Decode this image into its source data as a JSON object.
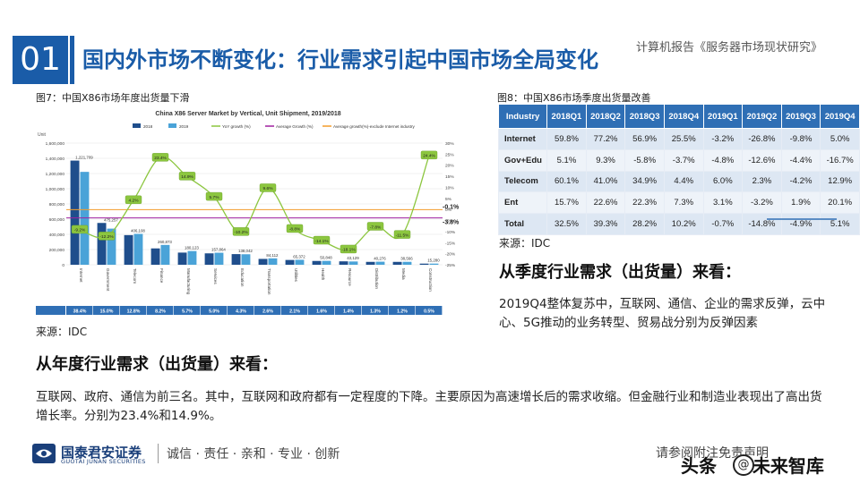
{
  "header": {
    "number": "01",
    "title": "国内外市场不断变化：行业需求引起中国市场全局变化",
    "report_name": "计算机报告《服务器市场现状研究》"
  },
  "left": {
    "fig_caption": "图7：中国X86市场年度出货量下滑",
    "source": "来源：IDC",
    "heading": "从年度行业需求（出货量）来看：",
    "paragraph": "互联网、政府、通信为前三名。其中，互联网和政府都有一定程度的下降。主要原因为高速增长后的需求收缩。但金融行业和制造业表现出了高出货增长率。分别为23.4%和14.9%。"
  },
  "right": {
    "fig_caption": "图8：中国X86市场季度出货量改善",
    "source": "来源：IDC",
    "heading": "从季度行业需求（出货量）来看：",
    "paragraph": "2019Q4整体复苏中，互联网、通信、企业的需求反弹，云中心、5G推动的业务转型、贸易战分别为反弹因素"
  },
  "quarter_table": {
    "headers": [
      "Industry",
      "2018Q1",
      "2018Q2",
      "2018Q3",
      "2018Q4",
      "2019Q1",
      "2019Q2",
      "2019Q3",
      "2019Q4"
    ],
    "rows": [
      [
        "Internet",
        "59.8%",
        "77.2%",
        "56.9%",
        "25.5%",
        "-3.2%",
        "-26.8%",
        "-9.8%",
        "5.0%"
      ],
      [
        "Gov+Edu",
        "5.1%",
        "9.3%",
        "-5.8%",
        "-3.7%",
        "-4.8%",
        "-12.6%",
        "-4.4%",
        "-16.7%"
      ],
      [
        "Telecom",
        "60.1%",
        "41.0%",
        "34.9%",
        "4.4%",
        "6.0%",
        "2.3%",
        "-4.2%",
        "12.9%"
      ],
      [
        "Ent",
        "15.7%",
        "22.6%",
        "22.3%",
        "7.3%",
        "3.1%",
        "-3.2%",
        "1.9%",
        "20.1%"
      ],
      [
        "Total",
        "32.5%",
        "39.3%",
        "28.2%",
        "10.2%",
        "-0.7%",
        "-14.8%",
        "-4.9%",
        "5.1%"
      ]
    ]
  },
  "footer": {
    "logo_text": "国泰君安证券",
    "logo_sub": "GUOTAI JUNAN SECURITIES",
    "slogan": "诚信 · 责任 · 亲和 · 专业 · 创新",
    "disclaimer": "请参阅附注免责声明",
    "watermark": "头条",
    "watermark_name": "未来智库",
    "watermark_icon": "@"
  },
  "colors": {
    "brand_blue": "#1a5ca8",
    "bar_2018": "#1f4e8c",
    "bar_2019": "#4aa3d8",
    "yoy_green": "#8cc63f",
    "avg_purple": "#a020a0",
    "avg_orange": "#f39c2a"
  },
  "chart_data": {
    "type": "bar",
    "title": "China X86 Server Market by Vertical, Unit Shipment, 2019/2018",
    "ylabel": "Unit",
    "ylim": [
      0,
      1600000
    ],
    "y2lim": [
      -25,
      30
    ],
    "y_ticks": [
      "0",
      "200,000",
      "400,000",
      "600,000",
      "800,000",
      "1,000,000",
      "1,200,000",
      "1,400,000",
      "1,600,000"
    ],
    "y2_ticks": [
      "-25%",
      "-20%",
      "-15%",
      "-10%",
      "-5%",
      "0%",
      "5%",
      "10%",
      "15%",
      "20%",
      "25%",
      "30%"
    ],
    "legend": [
      "2018",
      "2019",
      "YoY growth (%)",
      "Average Growth (%)",
      "Average growth(%)-exclude Internet industry"
    ],
    "categories": [
      "Internet",
      "Government",
      "Telecom",
      "Finance",
      "Manufacturing",
      "Services",
      "Education",
      "Transportation",
      "Utilities",
      "Health",
      "Resource",
      "Distribution",
      "Media",
      "Construction"
    ],
    "series": [
      {
        "name": "2018",
        "values": [
          1370000,
          550000,
          390000,
          215000,
          160000,
          150000,
          140000,
          77000,
          63000,
          50000,
          45000,
          38000,
          38000,
          15000
        ]
      },
      {
        "name": "2019",
        "values": [
          1221709,
          475257,
          406108,
          260873,
          180123,
          157864,
          138042,
          84112,
          65372,
          50848,
          43129,
          40276,
          38566,
          15280
        ]
      },
      {
        "name": "YoY growth (%)",
        "values": [
          -9.2,
          -12.2,
          4.2,
          23.4,
          14.9,
          5.7,
          -10.2,
          9.6,
          -8.8,
          -14.1,
          -18.1,
          -7.8,
          -11.5,
          24.4
        ]
      }
    ],
    "bar_labels_2019": [
      "1,221,709",
      "475,257",
      "406,108",
      "260,873",
      "180,123",
      "157,864",
      "138,042",
      "84,112",
      "65,372",
      "50,848",
      "43,129",
      "40,276",
      "38,566",
      "15,280"
    ],
    "yoy_labels": [
      "-9.2%",
      "-12.2%",
      "4.2%",
      "23.4%",
      "14.9%",
      "5.7%",
      "-10.2%",
      "9.6%",
      "-8.8%",
      "-14.1%",
      "-18.1%",
      "-7.8%",
      "-11.5%",
      "24.4%"
    ],
    "average_growth": -3.8,
    "average_growth_label": "-3.8%",
    "average_excl_internet": -0.1,
    "average_excl_internet_label": "-0.1%",
    "share_row": [
      "38.4%",
      "15.0%",
      "12.8%",
      "8.2%",
      "5.7%",
      "5.0%",
      "4.3%",
      "2.6%",
      "2.1%",
      "1.6%",
      "1.4%",
      "1.3%",
      "1.2%",
      "0.5%"
    ]
  }
}
